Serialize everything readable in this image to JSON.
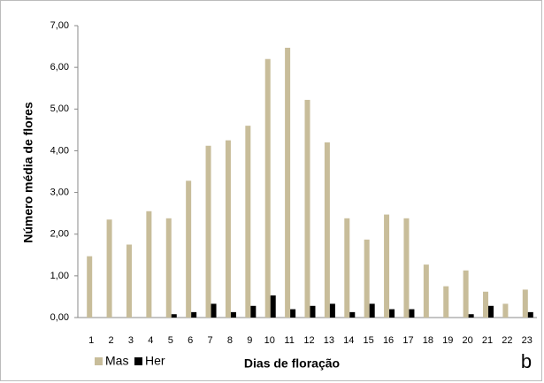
{
  "chart_data": {
    "type": "bar",
    "y_label": "Número média de flores",
    "x_label": "Dias de floração",
    "annotation": "b",
    "categories": [
      "1",
      "2",
      "3",
      "4",
      "5",
      "6",
      "7",
      "8",
      "9",
      "10",
      "11",
      "12",
      "13",
      "14",
      "15",
      "16",
      "17",
      "18",
      "19",
      "20",
      "21",
      "22",
      "23"
    ],
    "series": [
      {
        "name": "Mas",
        "color": "#c8bd9a",
        "values": [
          1.47,
          2.35,
          1.75,
          2.55,
          2.38,
          3.28,
          4.12,
          4.25,
          4.6,
          6.2,
          6.47,
          5.22,
          4.2,
          2.38,
          1.87,
          2.47,
          2.38,
          1.27,
          0.75,
          1.13,
          0.62,
          0.33,
          0.67
        ]
      },
      {
        "name": "Her",
        "color": "#000000",
        "values": [
          0,
          0,
          0,
          0,
          0.08,
          0.13,
          0.33,
          0.13,
          0.28,
          0.53,
          0.2,
          0.28,
          0.33,
          0.13,
          0.33,
          0.2,
          0.2,
          0,
          0,
          0.08,
          0.28,
          0,
          0.13
        ]
      }
    ],
    "ylim": [
      0,
      7
    ],
    "yticks": [
      {
        "value": 0,
        "label": "0,00"
      },
      {
        "value": 1,
        "label": "1,00"
      },
      {
        "value": 2,
        "label": "2,00"
      },
      {
        "value": 3,
        "label": "3,00"
      },
      {
        "value": 4,
        "label": "4,00"
      },
      {
        "value": 5,
        "label": "5,00"
      },
      {
        "value": 6,
        "label": "6,00"
      },
      {
        "value": 7,
        "label": "7,00"
      }
    ]
  }
}
